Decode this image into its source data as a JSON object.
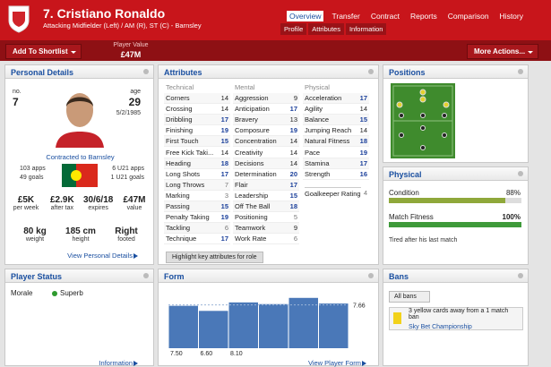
{
  "header": {
    "title": "7. Cristiano Ronaldo",
    "subtitle": "Attacking Midfielder (Left) / AM (R), ST (C) - Barnsley",
    "tabs": [
      "Overview",
      "Transfer",
      "Contract",
      "Reports",
      "Comparison",
      "History"
    ],
    "subtabs": [
      "Profile",
      "Attributes",
      "Information"
    ]
  },
  "toolbar": {
    "shortlist": "Add To Shortlist",
    "value_label": "Player Value",
    "value": "£47M",
    "actions": "More Actions..."
  },
  "personal": {
    "title": "Personal Details",
    "no_label": "no.",
    "no": 7,
    "age_label": "age",
    "age": 29,
    "dob": "5/2/1985",
    "contract": "Contracted to Barnsley",
    "apps": "103 apps",
    "goals": "49 goals",
    "u21_apps": "6 U21 apps",
    "u21_goals": "1 U21 goals",
    "stats": [
      [
        "£5K",
        "per week"
      ],
      [
        "£2.9K",
        "after tax"
      ],
      [
        "30/6/18",
        "expires"
      ],
      [
        "£47M",
        "value"
      ]
    ],
    "body": [
      [
        "80 kg",
        "weight"
      ],
      [
        "185 cm",
        "height"
      ],
      [
        "Right",
        "footed"
      ]
    ],
    "link": "View Personal Details"
  },
  "attributes": {
    "title": "Attributes",
    "button": "Highlight key attributes for role",
    "groups": [
      {
        "name": "Technical",
        "items": [
          [
            "Corners",
            14
          ],
          [
            "Crossing",
            14
          ],
          [
            "Dribbling",
            17
          ],
          [
            "Finishing",
            19
          ],
          [
            "First Touch",
            15
          ],
          [
            "Free Kick Taki...",
            14
          ],
          [
            "Heading",
            18
          ],
          [
            "Long Shots",
            17
          ],
          [
            "Long Throws",
            7
          ],
          [
            "Marking",
            3
          ],
          [
            "Passing",
            15
          ],
          [
            "Penalty Taking",
            19
          ],
          [
            "Tackling",
            6
          ],
          [
            "Technique",
            17
          ]
        ]
      },
      {
        "name": "Mental",
        "items": [
          [
            "Aggression",
            9
          ],
          [
            "Anticipation",
            17
          ],
          [
            "Bravery",
            13
          ],
          [
            "Composure",
            19
          ],
          [
            "Concentration",
            14
          ],
          [
            "Creativity",
            14
          ],
          [
            "Decisions",
            14
          ],
          [
            "Determination",
            20
          ],
          [
            "Flair",
            17
          ],
          [
            "Leadership",
            15
          ],
          [
            "Off The Ball",
            18
          ],
          [
            "Positioning",
            5
          ],
          [
            "Teamwork",
            9
          ],
          [
            "Work Rate",
            6
          ]
        ]
      },
      {
        "name": "Physical",
        "items": [
          [
            "Acceleration",
            17
          ],
          [
            "Agility",
            14
          ],
          [
            "Balance",
            15
          ],
          [
            "Jumping Reach",
            14
          ],
          [
            "Natural Fitness",
            18
          ],
          [
            "Pace",
            19
          ],
          [
            "Stamina",
            17
          ],
          [
            "Strength",
            16
          ]
        ]
      }
    ],
    "gk_label": "Goalkeeper Rating",
    "gk": 4
  },
  "positions": {
    "title": "Positions"
  },
  "physical": {
    "title": "Physical",
    "condition_label": "Condition",
    "condition": 88,
    "condition_text": "88%",
    "fitness_label": "Match Fitness",
    "fitness": 100,
    "fitness_text": "100%",
    "note": "Tired after his last match"
  },
  "status": {
    "title": "Player Status",
    "morale_label": "Morale",
    "morale": "Superb",
    "link": "Information"
  },
  "form": {
    "title": "Form",
    "values": [
      7.5,
      6.6,
      8.1,
      7.8,
      8.9,
      7.9
    ],
    "value_labels": [
      "7.50",
      "6.60",
      "8.10",
      null,
      null,
      null
    ],
    "ylim": [
      0,
      9.5
    ],
    "average": 7.66,
    "link": "View Player Form"
  },
  "bans": {
    "title": "Bans",
    "filter": "All bans",
    "text": "3 yellow cards away from a 1 match ban",
    "competition": "Sky Bet Championship"
  }
}
